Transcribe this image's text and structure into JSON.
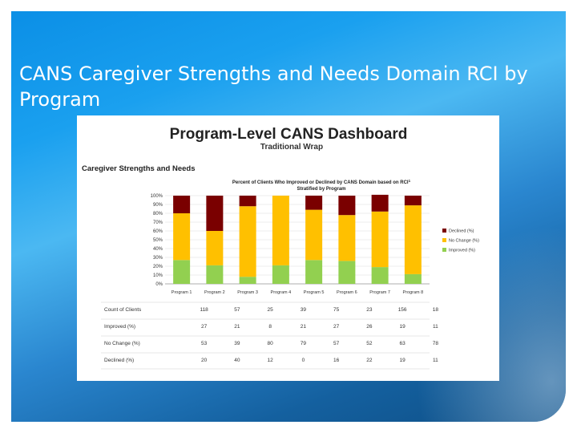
{
  "slide": {
    "title": "CANS Caregiver Strengths and Needs Domain RCI by Program"
  },
  "dashboard": {
    "title": "Program-Level CANS Dashboard",
    "subtitle": "Traditional Wrap",
    "section": "Caregiver Strengths and Needs",
    "chart_title_line1": "Percent of Clients Who Improved or Declined by CANS Domain based on RCI",
    "chart_title_line2": "Stratified by Program"
  },
  "colors": {
    "declined": "#7a0000",
    "no_change": "#ffc000",
    "improved": "#92d050"
  },
  "chart_data": {
    "type": "bar",
    "stacked": true,
    "percent": true,
    "categories": [
      "Program 1",
      "Program 2",
      "Program 3",
      "Program 4",
      "Program 5",
      "Program 6",
      "Program 7",
      "Program 8"
    ],
    "series": [
      {
        "name": "Improved (%)",
        "values": [
          27,
          21,
          8,
          21,
          27,
          26,
          19,
          11
        ]
      },
      {
        "name": "No Change (%)",
        "values": [
          53,
          39,
          80,
          79,
          57,
          52,
          63,
          78
        ]
      },
      {
        "name": "Declined (%)",
        "values": [
          20,
          40,
          12,
          0,
          16,
          22,
          19,
          11
        ]
      }
    ],
    "legend": [
      "Declined (%)",
      "No Change (%)",
      "Improved (%)"
    ],
    "legend_position": "right",
    "yticks": [
      "0%",
      "10%",
      "20%",
      "30%",
      "40%",
      "50%",
      "60%",
      "70%",
      "80%",
      "90%",
      "100%"
    ],
    "ylim": [
      0,
      100
    ]
  },
  "table": {
    "rows": [
      {
        "label": "Count of Clients",
        "values": [
          "118",
          "57",
          "25",
          "39",
          "75",
          "23",
          "156",
          "18"
        ]
      },
      {
        "label": "Improved (%)",
        "values": [
          "27",
          "21",
          "8",
          "21",
          "27",
          "26",
          "19",
          "11"
        ]
      },
      {
        "label": "No Change (%)",
        "values": [
          "53",
          "39",
          "80",
          "79",
          "57",
          "52",
          "63",
          "78"
        ]
      },
      {
        "label": "Declined (%)",
        "values": [
          "20",
          "40",
          "12",
          "0",
          "16",
          "22",
          "19",
          "11"
        ]
      }
    ]
  }
}
